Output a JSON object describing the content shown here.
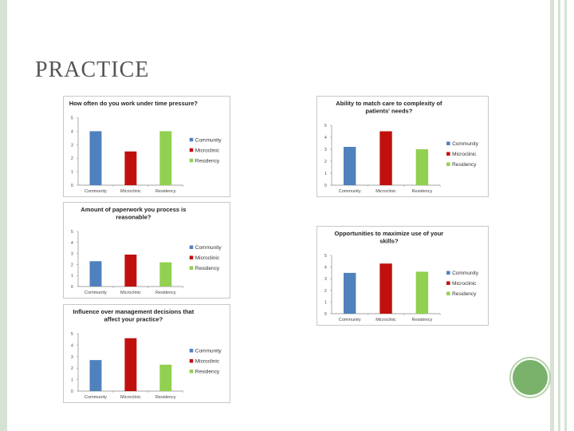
{
  "slide": {
    "title": "PRACTICE"
  },
  "colors": {
    "community": "#4f81bd",
    "microclinic": "#c0100e",
    "residency": "#92d050",
    "accent": "#7ab26b"
  },
  "chart_data": [
    {
      "type": "bar",
      "title": "How often do you work under time pressure?",
      "categories": [
        "Community",
        "Microclinic",
        "Residency"
      ],
      "values": [
        4,
        2.5,
        4
      ],
      "legend": [
        "Community",
        "Microclinic",
        "Residency"
      ],
      "ylim": [
        0,
        5
      ],
      "yticks": [
        "0",
        "1",
        "2",
        "3",
        "4",
        "5"
      ],
      "legend_position": "right",
      "grid": false
    },
    {
      "type": "bar",
      "title": "Amount of paperwork you process is reasonable?",
      "categories": [
        "Community",
        "Microclinic",
        "Residency"
      ],
      "values": [
        2.3,
        2.9,
        2.2
      ],
      "legend": [
        "Community",
        "Microclinic",
        "Residency"
      ],
      "ylim": [
        0,
        5
      ],
      "yticks": [
        "0",
        "1",
        "2",
        "3",
        "4",
        "5"
      ],
      "legend_position": "right",
      "grid": false
    },
    {
      "type": "bar",
      "title": "Influence over management decisions that affect your practice?",
      "categories": [
        "Community",
        "Microclinic",
        "Residency"
      ],
      "values": [
        2.7,
        4.6,
        2.3
      ],
      "legend": [
        "Community",
        "Microclinic",
        "Residency"
      ],
      "ylim": [
        0,
        5
      ],
      "yticks": [
        "0",
        "1",
        "2",
        "3",
        "4",
        "5"
      ],
      "legend_position": "right",
      "grid": false
    },
    {
      "type": "bar",
      "title": "Ability to match care to complexity of patients' needs?",
      "categories": [
        "Community",
        "Microclinic",
        "Residency"
      ],
      "values": [
        3.2,
        4.5,
        3.0
      ],
      "legend": [
        "Community",
        "Microclinic",
        "Residency"
      ],
      "ylim": [
        0,
        5
      ],
      "yticks": [
        "0",
        "1",
        "2",
        "3",
        "4",
        "5"
      ],
      "legend_position": "right",
      "grid": false
    },
    {
      "type": "bar",
      "title": "Opportunities to maximize use of your skills?",
      "categories": [
        "Community",
        "Microclinic",
        "Residency"
      ],
      "values": [
        3.5,
        4.3,
        3.6
      ],
      "legend": [
        "Community",
        "Microclinic",
        "Residency"
      ],
      "ylim": [
        0,
        5
      ],
      "yticks": [
        "0",
        "1",
        "2",
        "3",
        "4",
        "5"
      ],
      "legend_position": "right",
      "grid": false
    }
  ]
}
